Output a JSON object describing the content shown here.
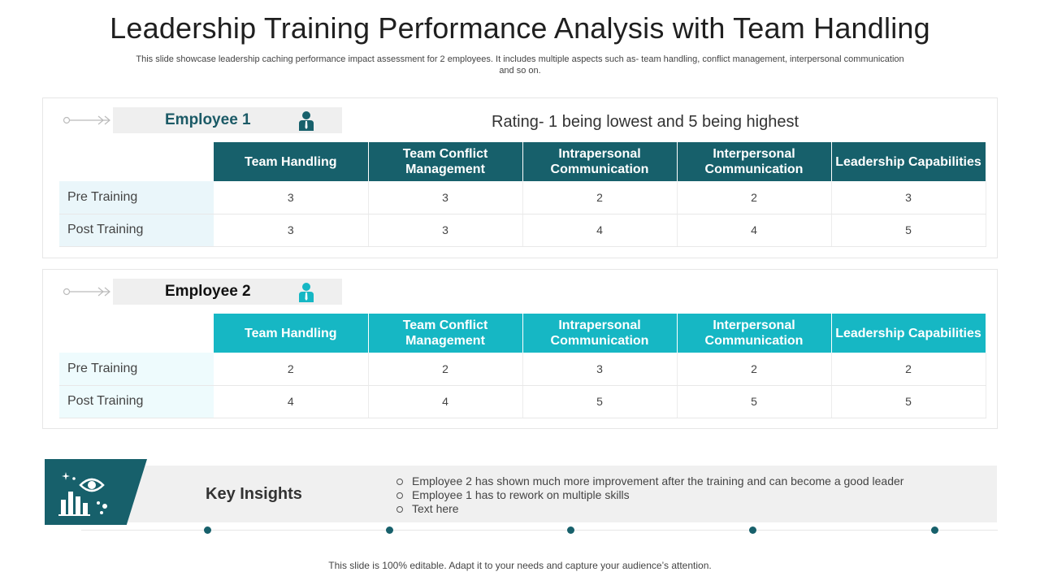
{
  "title": "Leadership Training Performance Analysis with Team Handling",
  "subtitle": "This slide showcase leadership caching performance impact assessment for 2 employees. It includes multiple aspects such as- team handling, conflict management, interpersonal communication and so on.",
  "rating_note": "Rating- 1 being lowest and 5 being highest",
  "columns": [
    "Team Handling",
    "Team Conflict Management",
    "Intrapersonal Communication",
    "Interpersonal Communication",
    "Leadership Capabilities"
  ],
  "colors": {
    "dark_teal": "#17606b",
    "light_teal": "#16b7c4"
  },
  "employees": [
    {
      "name": "Employee 1",
      "icon": "person-icon",
      "rows": [
        {
          "label": "Pre Training",
          "values": [
            "3",
            "3",
            "2",
            "2",
            "3"
          ]
        },
        {
          "label": "Post Training",
          "values": [
            "3",
            "3",
            "4",
            "4",
            "5"
          ]
        }
      ]
    },
    {
      "name": "Employee 2",
      "icon": "person-icon",
      "rows": [
        {
          "label": "Pre Training",
          "values": [
            "2",
            "2",
            "3",
            "2",
            "2"
          ]
        },
        {
          "label": "Post Training",
          "values": [
            "4",
            "4",
            "5",
            "5",
            "5"
          ]
        }
      ]
    }
  ],
  "insights": {
    "title": "Key Insights",
    "icon": "insight-chart-eye-icon",
    "items": [
      "Employee 2 has shown much more improvement after the training and can become a good leader",
      "Employee 1 has to rework on multiple skills",
      "Text here"
    ]
  },
  "footer": "This slide is 100% editable. Adapt it to your needs and capture your audience’s attention."
}
